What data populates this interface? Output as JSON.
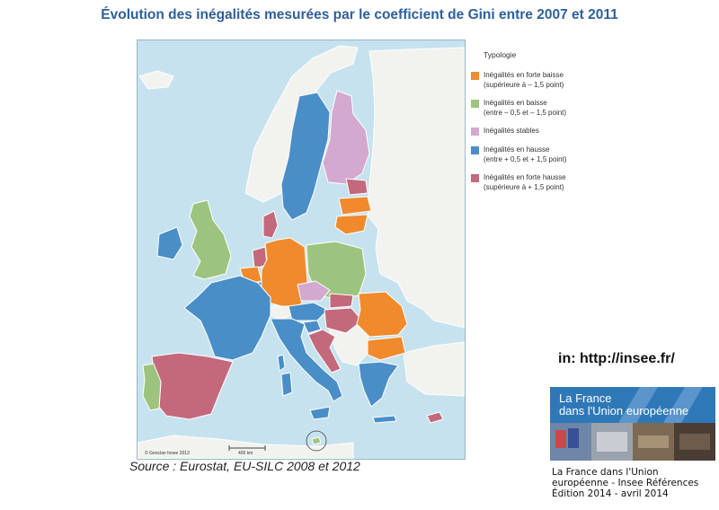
{
  "title": "Évolution des inégalités mesurées par le coefficient de Gini entre 2007 et 2011",
  "legend": {
    "heading": "Typologie",
    "items": [
      {
        "label": "Inégalités en forte baisse",
        "detail": "(supérieure à – 1,5 point)",
        "color": "#f08a2c"
      },
      {
        "label": "Inégalités en baisse",
        "detail": "(entre – 0,5 et – 1,5 point)",
        "color": "#9dc47e"
      },
      {
        "label": "Inégalités stables",
        "detail": "",
        "color": "#d3a9d0"
      },
      {
        "label": "Inégalités en hausse",
        "detail": "(entre + 0,5 et + 1,5 point)",
        "color": "#4a8ec8"
      },
      {
        "label": "Inégalités en forte hausse",
        "detail": "(supérieure à + 1,5 point)",
        "color": "#c3697b"
      }
    ]
  },
  "map": {
    "copyright": "© Geoclan Insee 2013",
    "scale_label": "400 km",
    "sea_color": "#c6e2ef",
    "nodata_color": "#f2f2ee",
    "border_color": "#ffffff"
  },
  "source": "Source : Eurostat, EU-SILC 2008 et 2012",
  "link": "in: http://insee.fr/",
  "cover": {
    "title_line1": "La France",
    "title_line2": "dans l'Union européenne"
  },
  "caption": {
    "line1": "La France dans l'Union",
    "line2": "européenne - Insee Références",
    "line3": "Édition 2014 - avril 2014"
  }
}
